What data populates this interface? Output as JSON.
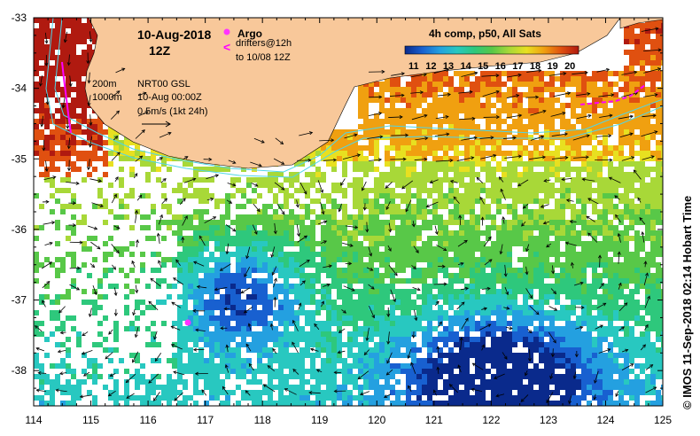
{
  "map": {
    "date_line": "10-Aug-2018",
    "time_line": "12Z",
    "legend_argo": "Argo",
    "legend_drifters": "drifters@12h",
    "legend_drifters_sub": "to 10/08 12Z",
    "depth_200": "200m",
    "depth_1000": "1000m",
    "nrt_line1": "NRT00 GSL",
    "nrt_line2": "10-Aug 00:00Z",
    "scale_label": "0.5m/s (1kt 24h)",
    "colorbar_title": "4h comp, p50, All Sats",
    "colorbar_ticks": [
      "11",
      "12",
      "13",
      "14",
      "15",
      "16",
      "17",
      "18",
      "19",
      "20"
    ],
    "credit": "© IMOS 11-Sep-2018 02:14 Hobart Time",
    "lon_ticks": [
      "114",
      "115",
      "116",
      "117",
      "118",
      "119",
      "120",
      "121",
      "122",
      "123",
      "124",
      "125"
    ],
    "lat_ticks": [
      "-33",
      "-34",
      "-35",
      "-36",
      "-37",
      "-38"
    ],
    "extent": {
      "lon_min": 114,
      "lon_max": 125,
      "lat_min": -38.5,
      "lat_max": -33
    },
    "colors": {
      "land": "#f8c89a",
      "isobath": "#4fd6e8",
      "argo": "#ff33ff",
      "drifter": "#ff00ff",
      "frame": "#000000"
    },
    "sst_colorscale": [
      "#0a2a8c",
      "#1860d0",
      "#24a0e0",
      "#28c8c0",
      "#2ec87c",
      "#58c848",
      "#a8d838",
      "#e8e020",
      "#f0a010",
      "#e05010",
      "#b01a10"
    ],
    "argo_float": {
      "lon": 116.7,
      "lat": -37.3
    }
  }
}
